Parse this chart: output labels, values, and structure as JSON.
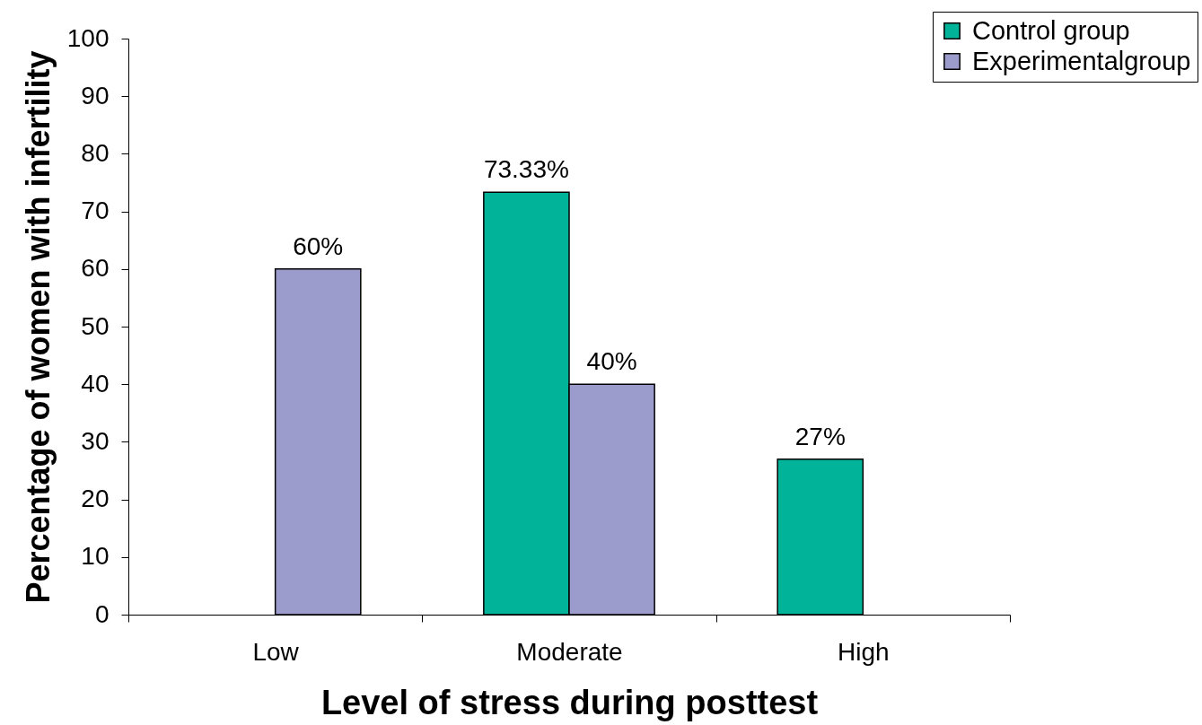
{
  "chart_data": {
    "type": "bar",
    "xlabel": "Level of stress during posttest",
    "ylabel": "Percentage of women with infertility",
    "categories": [
      "Low",
      "Moderate",
      "High"
    ],
    "series": [
      {
        "name": "Control group",
        "color": "#00b399",
        "values": [
          null,
          73.33,
          27
        ],
        "value_labels": [
          null,
          "73.33%",
          "27%"
        ]
      },
      {
        "name": "Experimentalgroup",
        "color": "#9c9ccc",
        "values": [
          60,
          40,
          null
        ],
        "value_labels": [
          "60%",
          "40%",
          null
        ]
      }
    ],
    "ylim": [
      0,
      100
    ],
    "yticks": [
      0,
      10,
      20,
      30,
      40,
      50,
      60,
      70,
      80,
      90,
      100
    ],
    "grid": false,
    "legend": "top right"
  }
}
